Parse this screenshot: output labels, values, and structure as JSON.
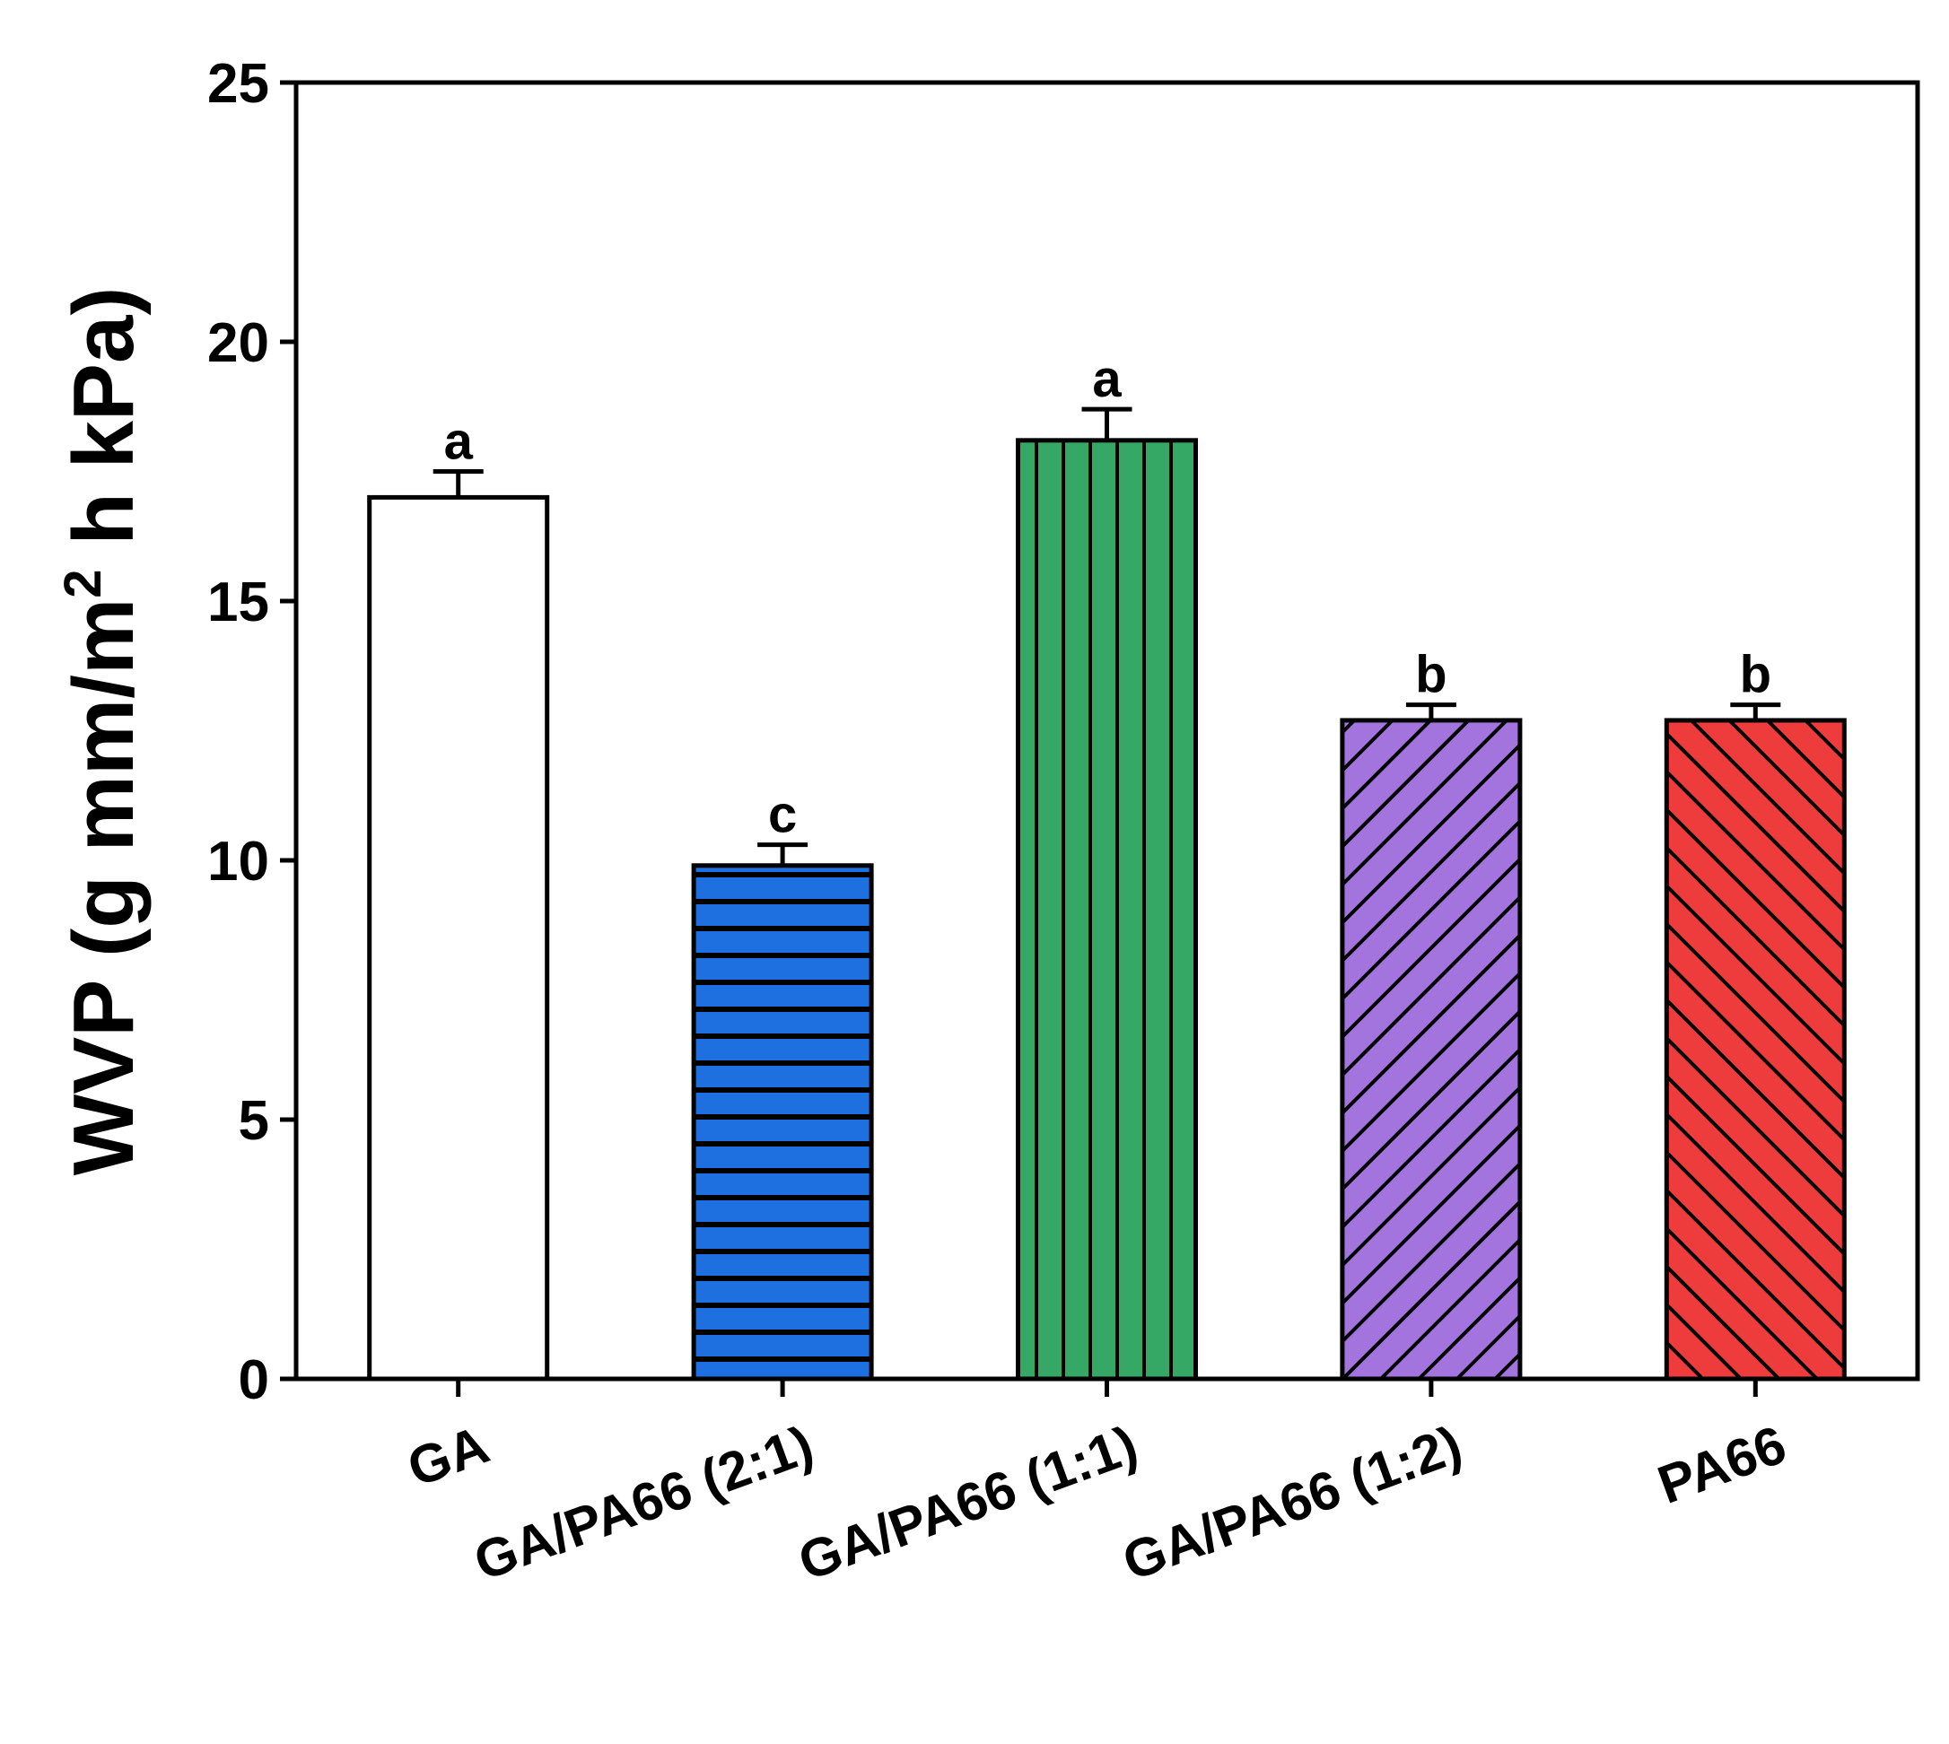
{
  "chart_data": {
    "type": "bar",
    "title": "",
    "xlabel": "",
    "ylabel": "WVP (g mm/m",
    "ylabel_sup": "2",
    "ylabel_tail": " h kPa)",
    "ylim": [
      0,
      25
    ],
    "yticks": [
      0,
      5,
      10,
      15,
      20,
      25
    ],
    "ytick_labels": [
      "0",
      "5",
      "10",
      "15",
      "20",
      "25"
    ],
    "categories": [
      "GA",
      "GA/PA66 (2:1)",
      "GA/PA66 (1:1)",
      "GA/PA66 (1:2)",
      "PA66"
    ],
    "values": [
      17.0,
      9.9,
      18.1,
      12.7,
      12.7
    ],
    "errors": [
      0.5,
      0.4,
      0.6,
      0.3,
      0.3
    ],
    "significance": [
      "a",
      "c",
      "a",
      "b",
      "b"
    ],
    "fills": [
      "#ffffff",
      "#1e6fe0",
      "#35a865",
      "#a474de",
      "#ee3c3c"
    ],
    "patterns": [
      "none",
      "horizontal",
      "vertical",
      "diag-up",
      "diag-down"
    ]
  }
}
